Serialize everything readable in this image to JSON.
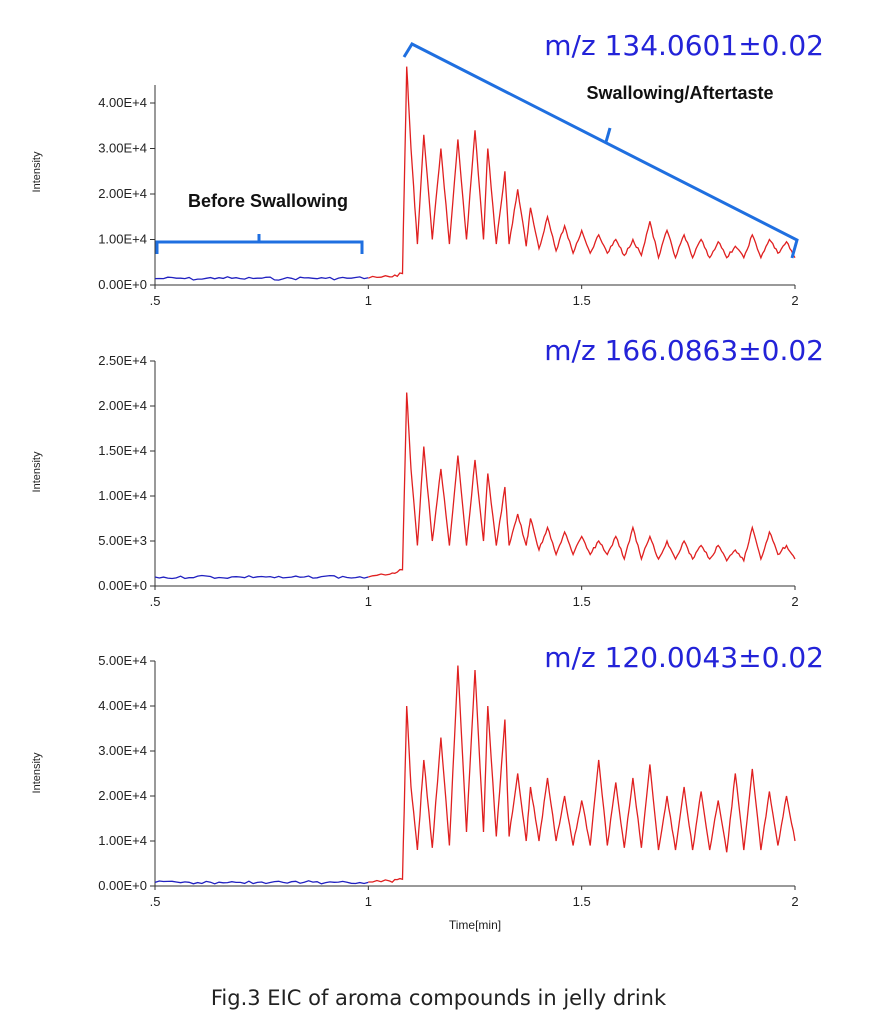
{
  "figure_caption": "Fig.3  EIC of aroma compounds in jelly drink",
  "colors": {
    "before_trace": "#2020c0",
    "after_trace": "#e02020",
    "bracket": "#1f6fe0",
    "mz_label": "#2323d8",
    "axis": "#333333"
  },
  "chart_data": [
    {
      "type": "line",
      "title": "m/z 134.0601±0.02",
      "xlabel": "",
      "ylabel": "Intensity",
      "xlim": [
        0.5,
        2.0
      ],
      "ylim": [
        0,
        45000
      ],
      "x_ticks": [
        0.5,
        1.0,
        1.5,
        2.0
      ],
      "x_tick_labels": [
        ".5",
        "1",
        "1.5",
        "2"
      ],
      "y_ticks": [
        0,
        10000,
        20000,
        30000,
        40000
      ],
      "y_tick_labels": [
        "0.00E+0",
        "1.00E+4",
        "2.00E+4",
        "3.00E+4",
        "4.00E+4"
      ],
      "annotations": [
        "Before Swallowing",
        "Swallowing/Aftertaste"
      ],
      "series": [
        {
          "name": "before",
          "color": "#2020c0",
          "x": [
            0.5,
            0.55,
            0.6,
            0.65,
            0.7,
            0.75,
            0.8,
            0.85,
            0.9,
            0.95,
            1.0
          ],
          "y": [
            1400,
            1500,
            1300,
            1600,
            1400,
            1500,
            1350,
            1550,
            1450,
            1500,
            1600
          ]
        },
        {
          "name": "after",
          "color": "#e02020",
          "x": [
            1.0,
            1.05,
            1.08,
            1.09,
            1.1,
            1.115,
            1.13,
            1.15,
            1.17,
            1.19,
            1.21,
            1.23,
            1.25,
            1.27,
            1.28,
            1.3,
            1.32,
            1.33,
            1.35,
            1.37,
            1.38,
            1.4,
            1.42,
            1.44,
            1.46,
            1.48,
            1.5,
            1.52,
            1.54,
            1.56,
            1.58,
            1.6,
            1.62,
            1.64,
            1.66,
            1.68,
            1.7,
            1.72,
            1.74,
            1.76,
            1.78,
            1.8,
            1.82,
            1.84,
            1.86,
            1.88,
            1.9,
            1.92,
            1.94,
            1.96,
            1.98,
            2.0
          ],
          "y": [
            1500,
            1800,
            2500,
            48000,
            30000,
            9000,
            33000,
            10000,
            30000,
            9000,
            32000,
            10000,
            34000,
            10000,
            30000,
            9000,
            25000,
            9000,
            21000,
            8500,
            17000,
            8000,
            15000,
            7500,
            13000,
            7000,
            12000,
            7000,
            11000,
            7000,
            10000,
            6500,
            10000,
            6500,
            14000,
            6000,
            12000,
            6000,
            11000,
            6000,
            10000,
            6000,
            9500,
            6000,
            8500,
            6000,
            11000,
            6000,
            10000,
            7000,
            9500,
            6000
          ]
        }
      ]
    },
    {
      "type": "line",
      "title": "m/z 166.0863±0.02",
      "xlabel": "",
      "ylabel": "Intensity",
      "xlim": [
        0.5,
        2.0
      ],
      "ylim": [
        0,
        25000
      ],
      "x_ticks": [
        0.5,
        1.0,
        1.5,
        2.0
      ],
      "x_tick_labels": [
        ".5",
        "1",
        "1.5",
        "2"
      ],
      "y_ticks": [
        0,
        5000,
        10000,
        15000,
        20000,
        25000
      ],
      "y_tick_labels": [
        "0.00E+0",
        "5.00E+3",
        "1.00E+4",
        "1.50E+4",
        "2.00E+4",
        "2.50E+4"
      ],
      "series": [
        {
          "name": "before",
          "color": "#2020c0",
          "x": [
            0.5,
            0.55,
            0.6,
            0.65,
            0.7,
            0.75,
            0.8,
            0.85,
            0.9,
            0.95,
            1.0
          ],
          "y": [
            1000,
            900,
            1100,
            950,
            1000,
            1050,
            900,
            1000,
            1100,
            950,
            1000
          ]
        },
        {
          "name": "after",
          "color": "#e02020",
          "x": [
            1.0,
            1.05,
            1.08,
            1.09,
            1.1,
            1.115,
            1.13,
            1.15,
            1.17,
            1.19,
            1.21,
            1.23,
            1.25,
            1.27,
            1.28,
            1.3,
            1.32,
            1.33,
            1.35,
            1.37,
            1.38,
            1.4,
            1.42,
            1.44,
            1.46,
            1.48,
            1.5,
            1.52,
            1.54,
            1.56,
            1.58,
            1.6,
            1.62,
            1.64,
            1.66,
            1.68,
            1.7,
            1.72,
            1.74,
            1.76,
            1.78,
            1.8,
            1.82,
            1.84,
            1.86,
            1.88,
            1.9,
            1.92,
            1.94,
            1.96,
            1.98,
            2.0
          ],
          "y": [
            1000,
            1300,
            1800,
            21500,
            13000,
            4500,
            15500,
            5000,
            13000,
            4500,
            14500,
            4500,
            14000,
            5000,
            12500,
            4500,
            11000,
            4500,
            8000,
            4500,
            7500,
            4000,
            6500,
            3500,
            6000,
            3500,
            5500,
            3500,
            5000,
            3500,
            5500,
            3000,
            6500,
            3000,
            5500,
            3000,
            5000,
            3000,
            5000,
            3000,
            4500,
            3000,
            4500,
            2800,
            4000,
            2800,
            6500,
            3000,
            6000,
            3500,
            4500,
            3000
          ]
        }
      ]
    },
    {
      "type": "line",
      "title": "m/z 120.0043±0.02",
      "xlabel": "Time[min]",
      "ylabel": "Intensity",
      "xlim": [
        0.5,
        2.0
      ],
      "ylim": [
        0,
        50000
      ],
      "x_ticks": [
        0.5,
        1.0,
        1.5,
        2.0
      ],
      "x_tick_labels": [
        ".5",
        "1",
        "1.5",
        "2"
      ],
      "y_ticks": [
        0,
        10000,
        20000,
        30000,
        40000,
        50000
      ],
      "y_tick_labels": [
        "0.00E+0",
        "1.00E+4",
        "2.00E+4",
        "3.00E+4",
        "4.00E+4",
        "5.00E+4"
      ],
      "series": [
        {
          "name": "before",
          "color": "#2020c0",
          "x": [
            0.5,
            0.55,
            0.6,
            0.65,
            0.7,
            0.75,
            0.8,
            0.85,
            0.9,
            0.95,
            1.0
          ],
          "y": [
            800,
            900,
            750,
            850,
            800,
            900,
            800,
            850,
            750,
            850,
            800
          ]
        },
        {
          "name": "after",
          "color": "#e02020",
          "x": [
            1.0,
            1.05,
            1.08,
            1.09,
            1.1,
            1.115,
            1.13,
            1.15,
            1.17,
            1.19,
            1.21,
            1.23,
            1.25,
            1.27,
            1.28,
            1.3,
            1.32,
            1.33,
            1.35,
            1.37,
            1.38,
            1.4,
            1.42,
            1.44,
            1.46,
            1.48,
            1.5,
            1.52,
            1.54,
            1.56,
            1.58,
            1.6,
            1.62,
            1.64,
            1.66,
            1.68,
            1.7,
            1.72,
            1.74,
            1.76,
            1.78,
            1.8,
            1.82,
            1.84,
            1.86,
            1.88,
            1.9,
            1.92,
            1.94,
            1.96,
            1.98,
            2.0
          ],
          "y": [
            900,
            1100,
            1500,
            40000,
            22000,
            8000,
            28000,
            8500,
            33000,
            9000,
            49000,
            12000,
            48000,
            12000,
            40000,
            11000,
            37000,
            11000,
            25000,
            10000,
            22000,
            10000,
            24000,
            10000,
            20000,
            9000,
            19000,
            9000,
            28000,
            9000,
            23000,
            8500,
            24000,
            8500,
            27000,
            8000,
            20000,
            8000,
            22000,
            8000,
            21000,
            8000,
            19000,
            7500,
            25000,
            8000,
            26000,
            8000,
            21000,
            9000,
            20000,
            10000
          ]
        }
      ]
    }
  ]
}
